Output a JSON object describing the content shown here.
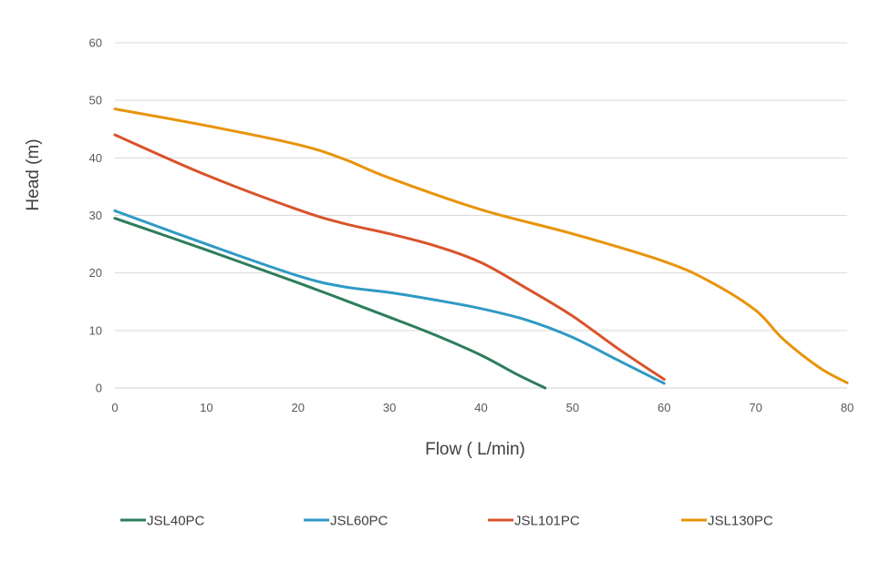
{
  "chart_data": {
    "type": "line",
    "title": "",
    "xlabel": "Flow ( L/min)",
    "ylabel": "Head (m)",
    "xlim": [
      0,
      80
    ],
    "ylim": [
      0,
      60
    ],
    "x_ticks": [
      "0",
      "10",
      "20",
      "30",
      "40",
      "50",
      "60",
      "70",
      "80"
    ],
    "y_ticks": [
      "0",
      "10",
      "20",
      "30",
      "40",
      "50",
      "60"
    ],
    "grid": "horizontal",
    "legend_position": "bottom",
    "series": [
      {
        "name": "JSL40PC",
        "color": "#2e7d5b",
        "points": [
          [
            0,
            29.5
          ],
          [
            10,
            24
          ],
          [
            20,
            18.3
          ],
          [
            30,
            12.3
          ],
          [
            35,
            9.2
          ],
          [
            40,
            5.7
          ],
          [
            44,
            2.3
          ],
          [
            47,
            0
          ]
        ]
      },
      {
        "name": "JSL60PC",
        "color": "#2f9ac4",
        "points": [
          [
            0,
            30.8
          ],
          [
            10,
            25
          ],
          [
            20,
            19.5
          ],
          [
            25,
            17.6
          ],
          [
            30,
            16.6
          ],
          [
            35,
            15.3
          ],
          [
            40,
            13.8
          ],
          [
            45,
            11.8
          ],
          [
            50,
            8.8
          ],
          [
            55,
            4.8
          ],
          [
            60,
            0.8
          ]
        ]
      },
      {
        "name": "JSL101PC",
        "color": "#d9532b",
        "points": [
          [
            0,
            44
          ],
          [
            10,
            37
          ],
          [
            20,
            31
          ],
          [
            25,
            28.6
          ],
          [
            30,
            26.8
          ],
          [
            35,
            24.7
          ],
          [
            40,
            21.8
          ],
          [
            45,
            17.3
          ],
          [
            50,
            12.5
          ],
          [
            55,
            6.8
          ],
          [
            60,
            1.5
          ]
        ]
      },
      {
        "name": "JSL130PC",
        "color": "#e8940a",
        "points": [
          [
            0,
            48.5
          ],
          [
            10,
            45.6
          ],
          [
            20,
            42.3
          ],
          [
            25,
            39.8
          ],
          [
            30,
            36.5
          ],
          [
            40,
            31
          ],
          [
            50,
            26.8
          ],
          [
            60,
            22
          ],
          [
            65,
            18.5
          ],
          [
            70,
            13.5
          ],
          [
            73,
            8.5
          ],
          [
            77,
            3.5
          ],
          [
            80,
            0.9
          ]
        ]
      }
    ]
  }
}
